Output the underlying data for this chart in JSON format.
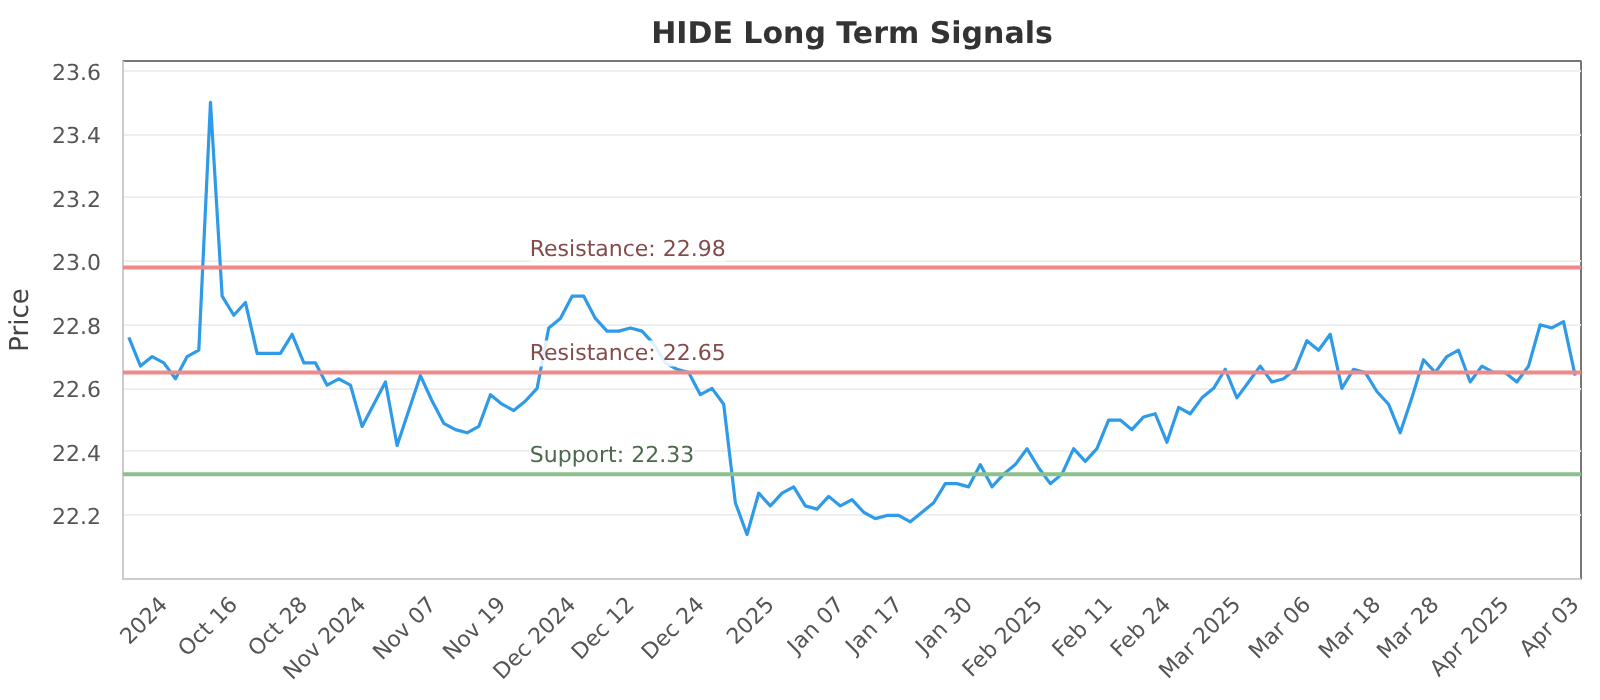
{
  "chart_data": {
    "type": "line",
    "title": "HIDE Long Term Signals",
    "ylabel": "Price",
    "categories": [
      null,
      null,
      null,
      "2024",
      null,
      null,
      null,
      null,
      null,
      "Oct 16",
      null,
      null,
      null,
      null,
      null,
      "Oct 28",
      null,
      null,
      null,
      null,
      "Nov 2024",
      null,
      null,
      null,
      null,
      null,
      "Nov 07",
      null,
      null,
      null,
      null,
      null,
      "Nov 19",
      null,
      null,
      null,
      null,
      null,
      "Dec 2024",
      null,
      null,
      null,
      null,
      "Dec 12",
      null,
      null,
      null,
      null,
      null,
      "Dec 24",
      null,
      null,
      null,
      null,
      null,
      "2025",
      null,
      null,
      null,
      null,
      null,
      "Jan 07",
      null,
      null,
      null,
      null,
      "Jan 17",
      null,
      null,
      null,
      null,
      null,
      "Jan 30",
      null,
      null,
      null,
      null,
      null,
      "Feb 2025",
      null,
      null,
      null,
      null,
      null,
      "Feb 11",
      null,
      null,
      null,
      null,
      "Feb 24",
      null,
      null,
      null,
      null,
      null,
      "Mar 2025",
      null,
      null,
      null,
      null,
      null,
      "Mar 06",
      null,
      null,
      null,
      null,
      null,
      "Mar 18",
      null,
      null,
      null,
      null,
      "Mar 28",
      null,
      null,
      null,
      null,
      null,
      "Apr 2025",
      null,
      null,
      null,
      null,
      null,
      "Apr 03"
    ],
    "series": [
      {
        "color": "#2f9be8",
        "values": [
          22.76,
          22.67,
          22.7,
          22.68,
          22.63,
          22.7,
          22.72,
          23.5,
          22.89,
          22.83,
          22.87,
          22.71,
          22.71,
          22.71,
          22.77,
          22.68,
          22.68,
          22.61,
          22.63,
          22.61,
          22.48,
          22.55,
          22.62,
          22.42,
          22.53,
          22.64,
          22.56,
          22.49,
          22.47,
          22.46,
          22.48,
          22.58,
          22.55,
          22.53,
          22.56,
          22.6,
          22.79,
          22.82,
          22.89,
          22.89,
          22.82,
          22.78,
          22.78,
          22.79,
          22.78,
          22.74,
          22.68,
          22.66,
          22.65,
          22.58,
          22.6,
          22.55,
          22.24,
          22.14,
          22.27,
          22.23,
          22.27,
          22.29,
          22.23,
          22.22,
          22.26,
          22.23,
          22.25,
          22.21,
          22.19,
          22.2,
          22.2,
          22.18,
          22.21,
          22.24,
          22.3,
          22.3,
          22.29,
          22.36,
          22.29,
          22.33,
          22.36,
          22.41,
          22.35,
          22.3,
          22.33,
          22.41,
          22.37,
          22.41,
          22.5,
          22.5,
          22.47,
          22.51,
          22.52,
          22.43,
          22.54,
          22.52,
          22.57,
          22.6,
          22.66,
          22.57,
          22.62,
          22.67,
          22.62,
          22.63,
          22.66,
          22.75,
          22.72,
          22.77,
          22.6,
          22.66,
          22.65,
          22.59,
          22.55,
          22.46,
          22.57,
          22.69,
          22.65,
          22.7,
          22.72,
          22.62,
          22.67,
          22.65,
          22.65,
          22.62,
          22.67,
          22.8,
          22.79,
          22.81,
          22.64
        ]
      }
    ],
    "ylim": [
      22.0,
      23.63
    ],
    "yticks": [
      22.2,
      22.4,
      22.6,
      22.8,
      {
        "value": 23,
        "label": "23.0"
      },
      23.2,
      23.4,
      23.6
    ],
    "ref_lines": [
      {
        "axis": "y",
        "value": 22.98,
        "label": "Resistance: 22.98",
        "color": "#f08a8a"
      },
      {
        "axis": "y",
        "value": 22.65,
        "label": "Resistance: 22.65",
        "color": "#f08a8a"
      },
      {
        "axis": "y",
        "value": 22.33,
        "label": "Support: 22.33",
        "color": "#8cc08c"
      }
    ],
    "grid": "y",
    "marker": "none",
    "line_style": "solid"
  }
}
